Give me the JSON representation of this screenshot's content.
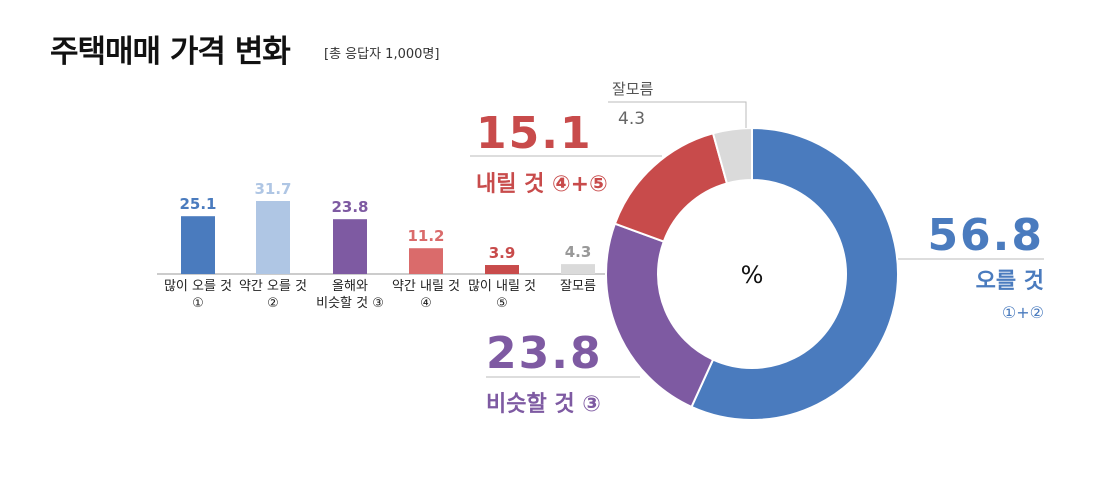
{
  "title": "주택매매 가격 변화",
  "subtitle": "[총 응답자 1,000명]",
  "colors": {
    "strong_up": "#4a7bbe",
    "mild_up": "#afc6e4",
    "same": "#7e5aa2",
    "mild_down": "#da6b6b",
    "strong_down": "#c84b4b",
    "unknown": "#dadada",
    "up": "#4a7bbe",
    "down": "#c84b4b"
  },
  "chart_data": [
    {
      "type": "bar",
      "categories": [
        [
          "많이 오를 것",
          "①"
        ],
        [
          "약간 오를 것",
          "②"
        ],
        [
          "올해와",
          "비슷할 것 ③"
        ],
        [
          "약간 내릴 것",
          "④"
        ],
        [
          "많이 내릴 것",
          "⑤"
        ],
        [
          "잘모름"
        ]
      ],
      "values": [
        25.1,
        31.7,
        23.8,
        11.2,
        3.9,
        4.3
      ],
      "value_labels": [
        "25.1",
        "31.7",
        "23.8",
        "11.2",
        "3.9",
        "4.3"
      ],
      "colors": [
        "#4a7bbe",
        "#afc6e4",
        "#7e5aa2",
        "#da6b6b",
        "#c84b4b",
        "#dadada"
      ],
      "ylim": [
        0,
        31.7
      ]
    },
    {
      "type": "pie",
      "style": "donut",
      "center_label": "%",
      "slices": [
        {
          "key": "up",
          "value": 56.8,
          "value_label": "56.8",
          "label": "오를 것",
          "sub": "①+②",
          "color": "#4a7bbe"
        },
        {
          "key": "same",
          "value": 23.8,
          "value_label": "23.8",
          "label": "비슷할 것 ③",
          "color": "#7e5aa2"
        },
        {
          "key": "down",
          "value": 15.1,
          "value_label": "15.1",
          "label": "내릴 것 ④+⑤",
          "color": "#c84b4b"
        },
        {
          "key": "unknown",
          "value": 4.3,
          "value_label": "4.3",
          "label": "잘모름",
          "color": "#dadada"
        }
      ]
    }
  ]
}
